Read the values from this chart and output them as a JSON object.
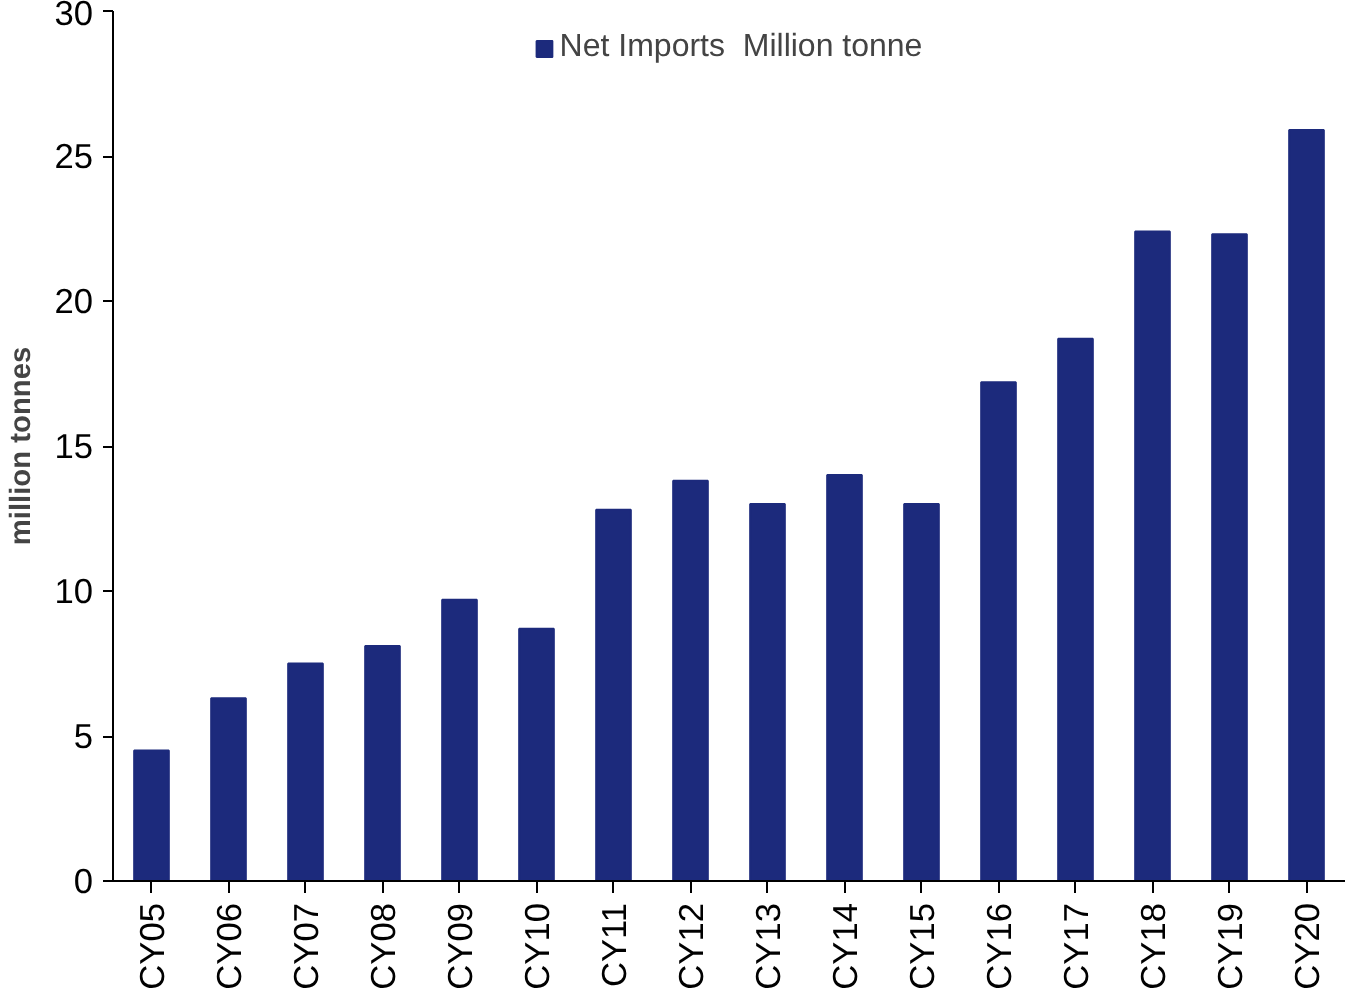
{
  "chart_data": {
    "type": "bar",
    "ylabel": "million tonnes",
    "categories": [
      "CY05",
      "CY06",
      "CY07",
      "CY08",
      "CY09",
      "CY10",
      "CY11",
      "CY12",
      "CY13",
      "CY14",
      "CY15",
      "CY16",
      "CY17",
      "CY18",
      "CY19",
      "CY20"
    ],
    "series": [
      {
        "name": "Net Imports  Million tonne",
        "color": "#1c2a7c",
        "values": [
          4.5,
          6.3,
          7.5,
          8.1,
          9.7,
          8.7,
          12.8,
          13.8,
          13.0,
          14.0,
          13.0,
          17.2,
          18.7,
          22.4,
          22.3,
          25.9
        ]
      }
    ],
    "ylim": [
      0,
      30
    ],
    "yticks": [
      0,
      5,
      10,
      15,
      20,
      25,
      30
    ],
    "grid": false,
    "legend": "top"
  }
}
